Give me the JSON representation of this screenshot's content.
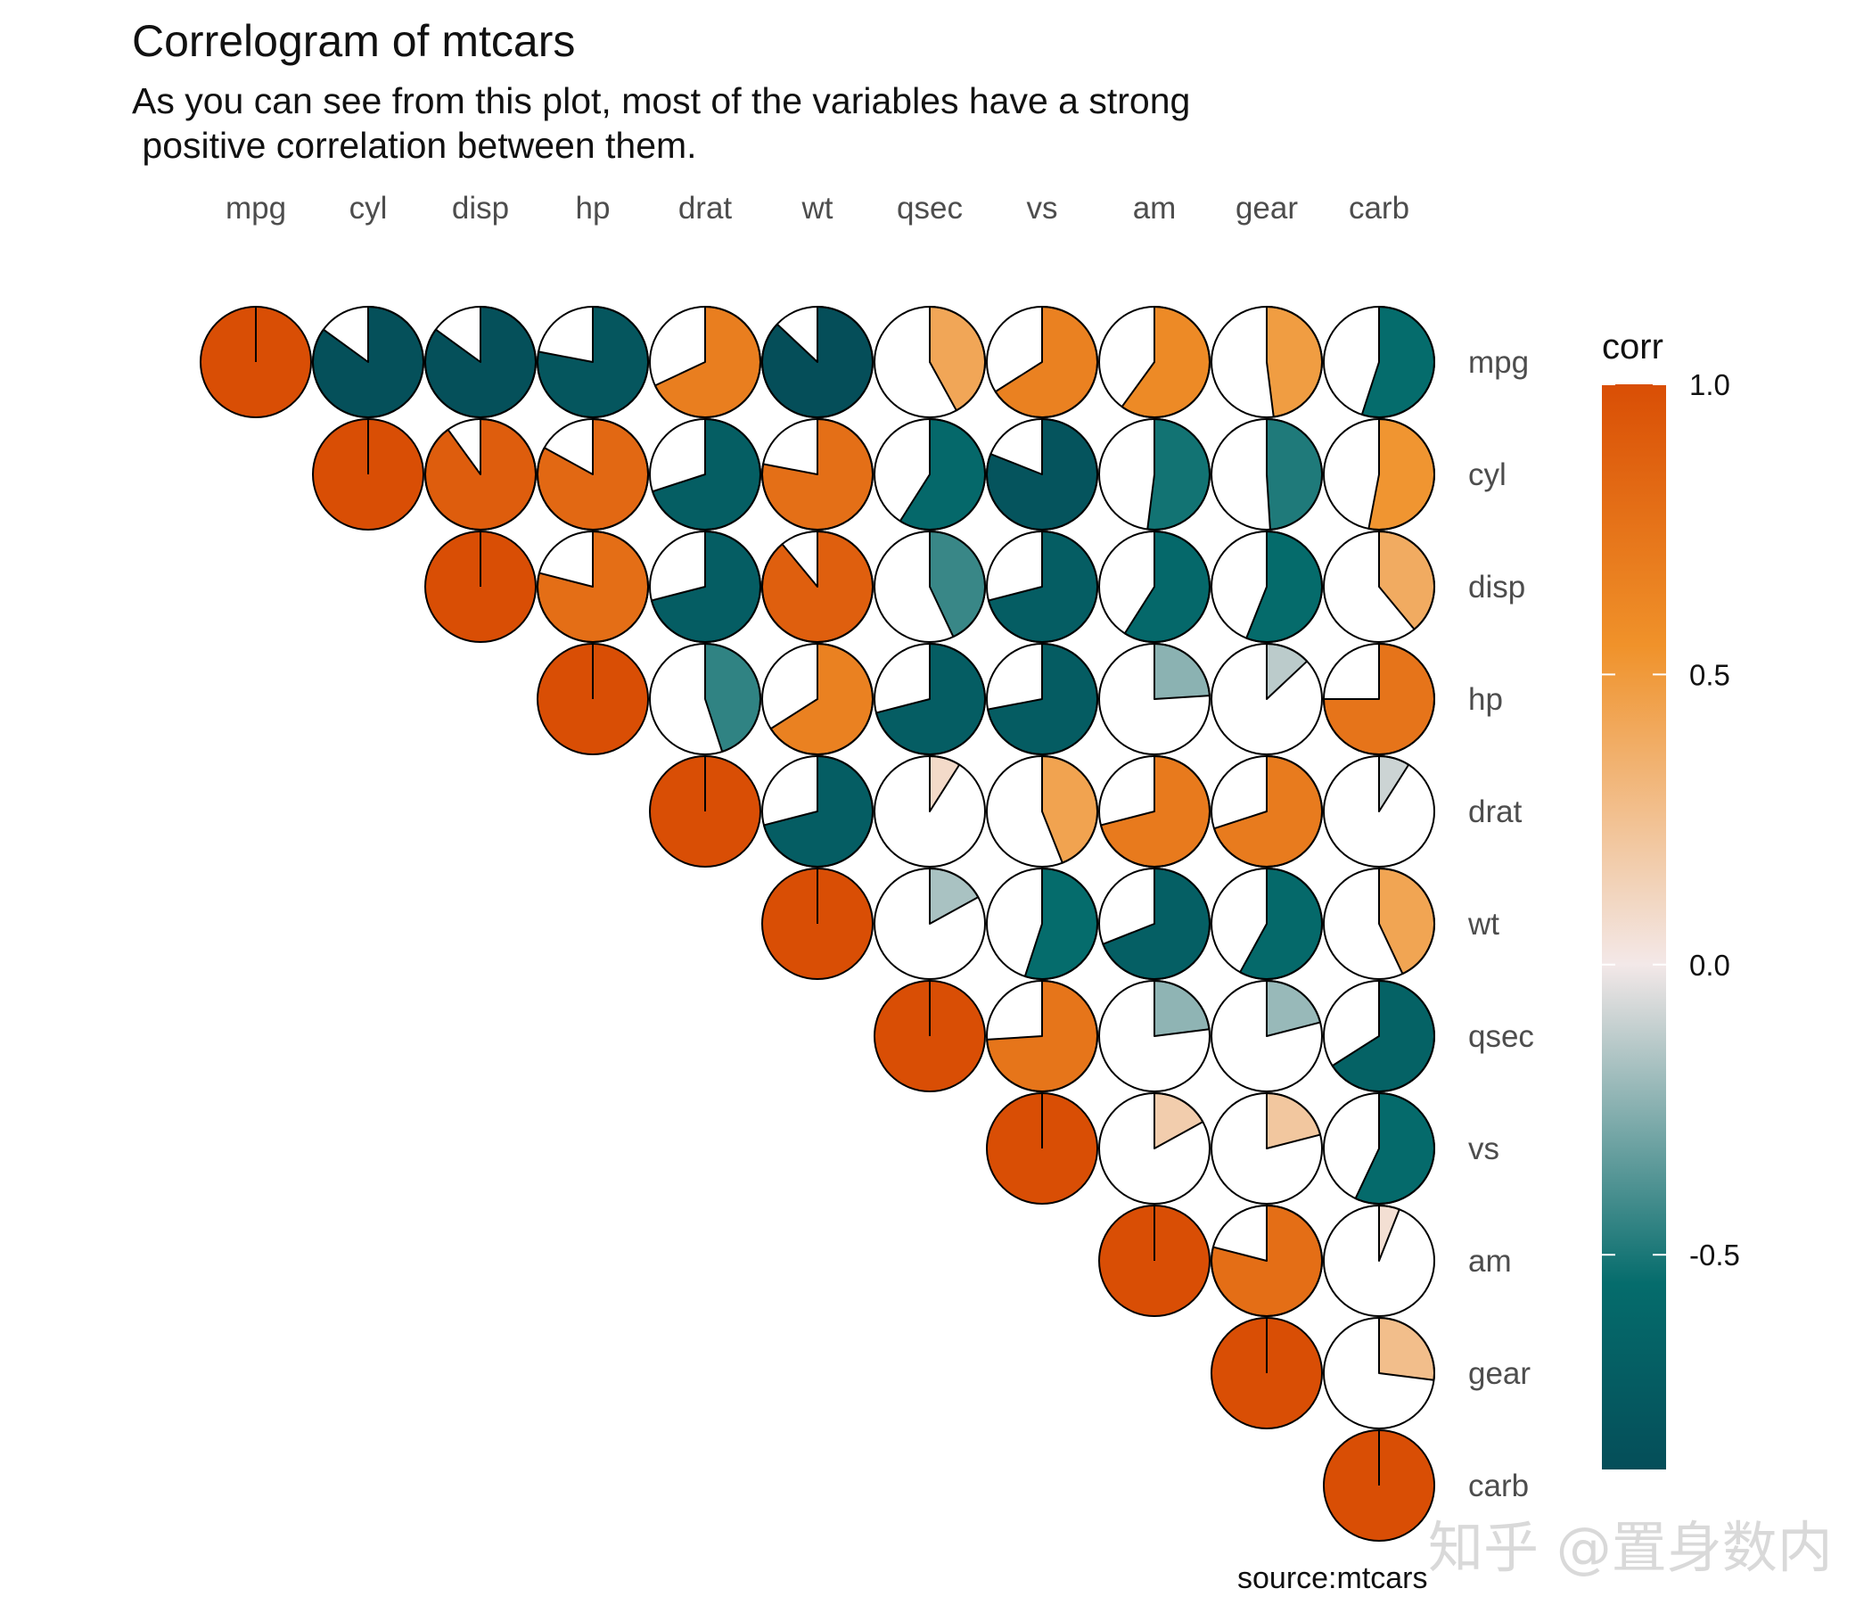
{
  "title": "Correlogram of mtcars",
  "subtitle": "As you can see from this plot, most of the variables have a strong\n positive correlation between them.",
  "caption": "source:mtcars",
  "watermark": "知乎 @置身数内",
  "legend": {
    "title": "corr",
    "ticks": [
      {
        "value": 1.0,
        "label": "1.0"
      },
      {
        "value": 0.5,
        "label": "0.5"
      },
      {
        "value": 0.0,
        "label": "0.0"
      },
      {
        "value": -0.5,
        "label": "-0.5"
      }
    ],
    "range": [
      -0.87,
      1.0
    ],
    "colors": {
      "low": "#054e59",
      "low_mid": "#056c6c",
      "mid": "#f3e8e8",
      "high_mid": "#f0922a",
      "high": "#d94e05"
    }
  },
  "chart_data": {
    "type": "heatmap",
    "glyph": "pie",
    "layout": "upper-triangle",
    "legend_position": "right",
    "variables": [
      "mpg",
      "cyl",
      "disp",
      "hp",
      "drat",
      "wt",
      "qsec",
      "vs",
      "am",
      "gear",
      "carb"
    ],
    "matrix": [
      [
        1.0,
        -0.85,
        -0.85,
        -0.78,
        0.68,
        -0.87,
        0.42,
        0.66,
        0.6,
        0.48,
        -0.55
      ],
      [
        -0.85,
        1.0,
        0.9,
        0.83,
        -0.7,
        0.78,
        -0.59,
        -0.81,
        -0.52,
        -0.49,
        0.53
      ],
      [
        -0.85,
        0.9,
        1.0,
        0.79,
        -0.71,
        0.89,
        -0.43,
        -0.71,
        -0.59,
        -0.56,
        0.39
      ],
      [
        -0.78,
        0.83,
        0.79,
        1.0,
        -0.45,
        0.66,
        -0.71,
        -0.72,
        -0.24,
        -0.13,
        0.75
      ],
      [
        0.68,
        -0.7,
        -0.71,
        -0.45,
        1.0,
        -0.71,
        0.09,
        0.44,
        0.71,
        0.7,
        -0.09
      ],
      [
        -0.87,
        0.78,
        0.89,
        0.66,
        -0.71,
        1.0,
        -0.17,
        -0.55,
        -0.69,
        -0.58,
        0.43
      ],
      [
        0.42,
        -0.59,
        -0.43,
        -0.71,
        0.09,
        -0.17,
        1.0,
        0.74,
        -0.23,
        -0.21,
        -0.66
      ],
      [
        0.66,
        -0.81,
        -0.71,
        -0.72,
        0.44,
        -0.55,
        0.74,
        1.0,
        0.17,
        0.21,
        -0.57
      ],
      [
        0.6,
        -0.52,
        -0.59,
        -0.24,
        0.71,
        -0.69,
        -0.23,
        0.17,
        1.0,
        0.79,
        0.06
      ],
      [
        0.48,
        -0.49,
        -0.56,
        -0.13,
        0.7,
        -0.58,
        -0.21,
        0.21,
        0.79,
        1.0,
        0.27
      ],
      [
        -0.55,
        0.53,
        0.39,
        0.75,
        -0.09,
        0.43,
        -0.66,
        -0.57,
        0.06,
        0.27,
        1.0
      ]
    ]
  }
}
